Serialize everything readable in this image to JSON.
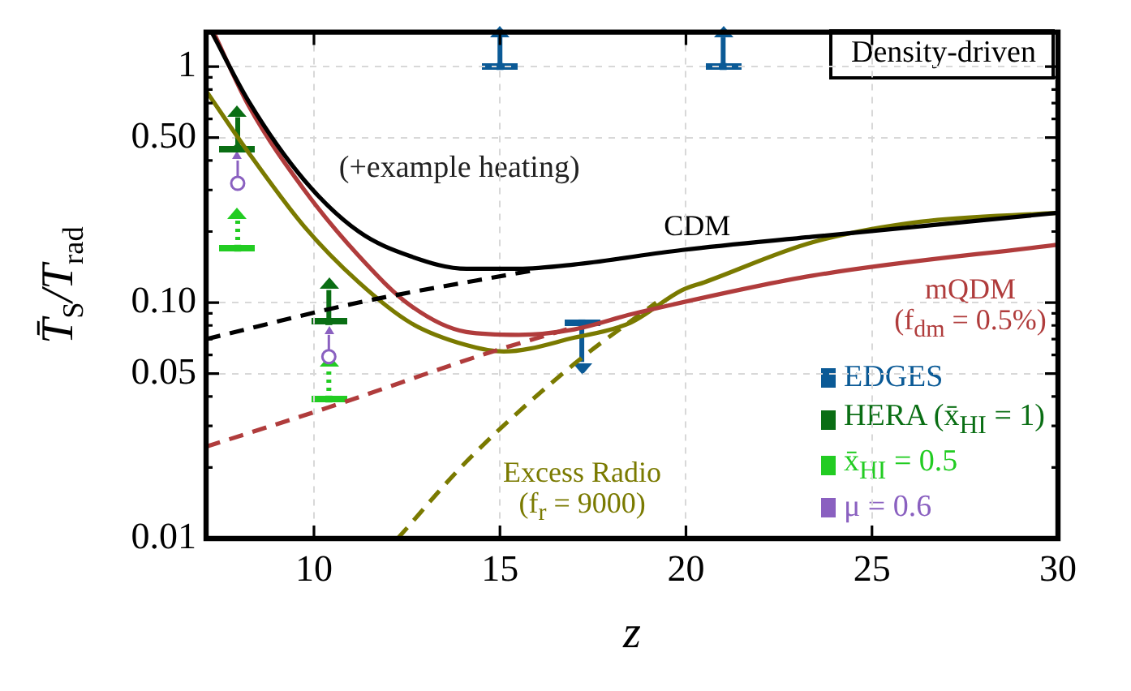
{
  "chart_data": {
    "type": "line",
    "title": "Density-driven",
    "xlabel": "z",
    "ylabel": "T̄$_{S}$/T$_{rad}$",
    "xlim": [
      7.1,
      30
    ],
    "xticks": [
      10,
      15,
      20,
      25,
      30
    ],
    "ylim": [
      0.01,
      1.4
    ],
    "yticks": [
      0.01,
      {
        "value": 0.02,
        "label": null
      },
      {
        "value": 0.03,
        "label": null
      },
      {
        "value": 0.04,
        "label": null
      },
      0.05,
      {
        "value": 0.06,
        "label": null
      },
      {
        "value": 0.07,
        "label": null
      },
      {
        "value": 0.08,
        "label": null
      },
      {
        "value": 0.09,
        "label": null
      },
      {
        "value": 0.1,
        "label": "0.10"
      },
      {
        "value": 0.2,
        "label": null
      },
      {
        "value": 0.3,
        "label": null
      },
      {
        "value": 0.4,
        "label": null
      },
      {
        "value": 0.5,
        "label": "0.50"
      },
      {
        "value": 0.6,
        "label": null
      },
      {
        "value": 0.7,
        "label": null
      },
      {
        "value": 0.8,
        "label": null
      },
      {
        "value": 0.9,
        "label": null
      },
      1
    ],
    "log": "y",
    "grid": true,
    "legend": "bottom right",
    "annotations": [
      "(+example heating)"
    ],
    "series": [
      {
        "name": "CDM",
        "type": "line",
        "color": "#000000",
        "x": [
          7.25,
          8.25,
          9.74,
          11.2,
          12.6,
          14.1,
          15.5,
          17,
          19.9,
          23.4,
          30
        ],
        "values": [
          1.4,
          0.71,
          0.33,
          0.2,
          0.157,
          0.139,
          0.139,
          0.145,
          0.167,
          0.19,
          0.24
        ]
      },
      {
        "type": "line",
        "color": "#000000",
        "line_style": "dashed",
        "x": [
          7.1,
          11.2,
          15.9
        ],
        "values": [
          0.07,
          0.1,
          0.137
        ]
      },
      {
        "name": "mQDM (f$_{dm}$ = 0.5%)",
        "type": "line",
        "color": "#b03c3c",
        "x": [
          7.3,
          8.25,
          9.74,
          11.2,
          12.6,
          14.1,
          15.5,
          17,
          18.5,
          19,
          23.4,
          30
        ],
        "values": [
          1.4,
          0.68,
          0.3,
          0.158,
          0.097,
          0.075,
          0.073,
          0.077,
          0.089,
          0.093,
          0.13,
          0.176
        ]
      },
      {
        "type": "line",
        "color": "#b03c3c",
        "line_style": "dashed",
        "x": [
          7.1,
          10.4,
          14.8,
          16.8
        ],
        "values": [
          0.0245,
          0.036,
          0.062,
          0.077
        ]
      },
      {
        "name": "Excess Radio (f$_{r}$ = 9000)",
        "type": "line",
        "color": "#7a7a00",
        "x": [
          7.1,
          8.25,
          9.74,
          11.2,
          12.6,
          14.1,
          15.1,
          17,
          18.5,
          19.9,
          20.5,
          23.4,
          26.3,
          30
        ],
        "values": [
          0.79,
          0.43,
          0.21,
          0.122,
          0.082,
          0.066,
          0.062,
          0.071,
          0.082,
          0.113,
          0.122,
          0.18,
          0.22,
          0.24
        ]
      },
      {
        "type": "line",
        "color": "#7a7a00",
        "line_style": "dashed",
        "x": [
          12.25,
          14.1,
          17,
          19.2
        ],
        "values": [
          0.01,
          0.0212,
          0.055,
          0.1
        ]
      },
      {
        "name": "EDGES",
        "type": "scatter",
        "color": "#0b5a96",
        "marker": "square",
        "x": [
          15,
          21,
          17.2
        ],
        "values": [
          1,
          1,
          0.082
        ],
        "errors": [
          [
            1,
            1.33
          ],
          [
            1,
            1.33
          ],
          [
            0.056,
            0.082
          ]
        ]
      },
      {
        "name": "HERA (x̄$_{HI}$ = 1)",
        "type": "scatter",
        "color": "#0a6e14",
        "marker": "square",
        "x": [
          7.95,
          10.4
        ],
        "values": [
          0.45,
          0.083
        ],
        "errors": [
          [
            0.45,
            0.61
          ],
          [
            0.083,
            0.113
          ]
        ]
      },
      {
        "name": "x̄$_{HI}$ = 0.5",
        "type": "scatter",
        "color": "#22cc22",
        "marker": "square",
        "line_style": "dotted",
        "x": [
          7.95,
          10.4
        ],
        "values": [
          0.17,
          0.039
        ],
        "errors": [
          [
            0.17,
            0.225
          ],
          [
            0.039,
            0.053
          ]
        ]
      },
      {
        "name": "μ = 0.6",
        "type": "scatter",
        "color": "#8a60c0",
        "marker": "circle",
        "x": [
          7.95,
          10.4
        ],
        "values": [
          0.32,
          0.059
        ],
        "errors": [
          [
            0.32,
            0.4
          ],
          [
            0.059,
            0.073
          ]
        ]
      }
    ]
  }
}
